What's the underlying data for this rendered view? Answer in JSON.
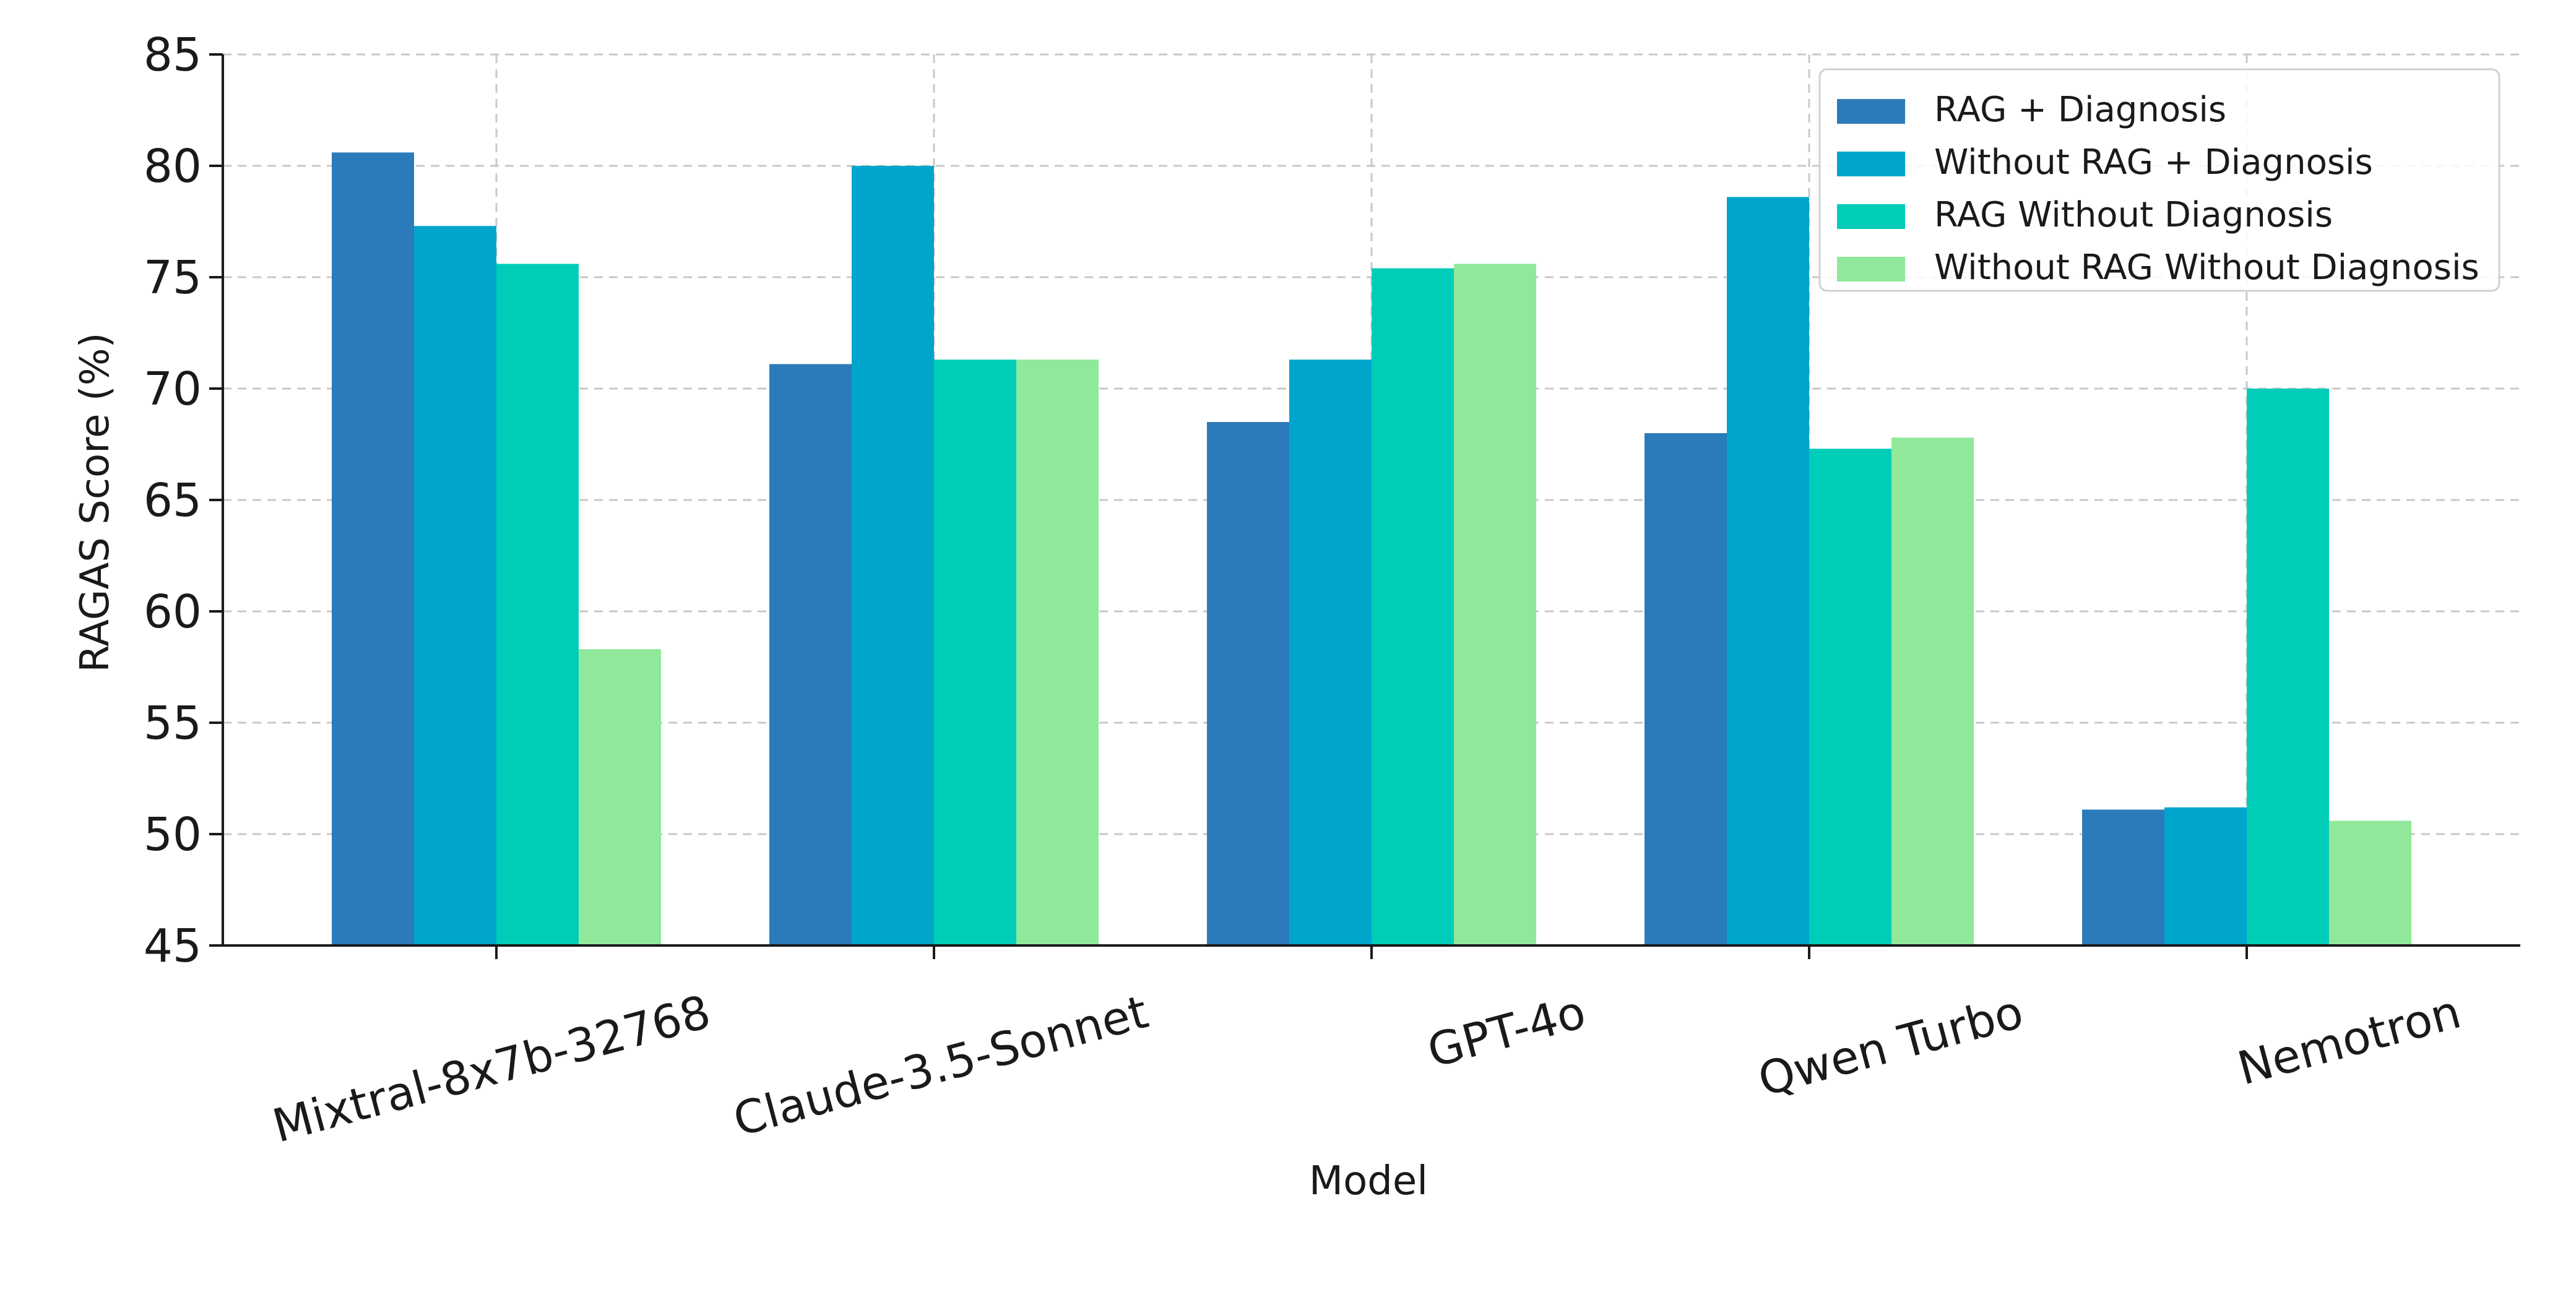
{
  "chart_data": {
    "type": "bar",
    "title": "",
    "xlabel": "Model",
    "ylabel": "RAGAS Score (%)",
    "ylim": [
      45,
      85
    ],
    "yticks": [
      45,
      50,
      55,
      60,
      65,
      70,
      75,
      80,
      85
    ],
    "grid": true,
    "legend_position": "top-right",
    "categories": [
      "Mixtral-8x7b-32768",
      "Claude-3.5-Sonnet",
      "GPT-4o",
      "Qwen Turbo",
      "Nemotron"
    ],
    "series": [
      {
        "name": "RAG + Diagnosis",
        "color": "#2b7bba",
        "values": [
          80.6,
          71.1,
          68.5,
          68.0,
          51.1
        ]
      },
      {
        "name": "Without RAG + Diagnosis",
        "color": "#00a5cc",
        "values": [
          77.3,
          80.0,
          71.3,
          78.6,
          51.2
        ]
      },
      {
        "name": "RAG Without Diagnosis",
        "color": "#00cdb8",
        "values": [
          75.6,
          71.3,
          75.4,
          67.3,
          70.0
        ]
      },
      {
        "name": "Without RAG Without Diagnosis",
        "color": "#90e89a",
        "values": [
          58.3,
          71.3,
          75.6,
          67.8,
          50.6
        ]
      }
    ]
  }
}
